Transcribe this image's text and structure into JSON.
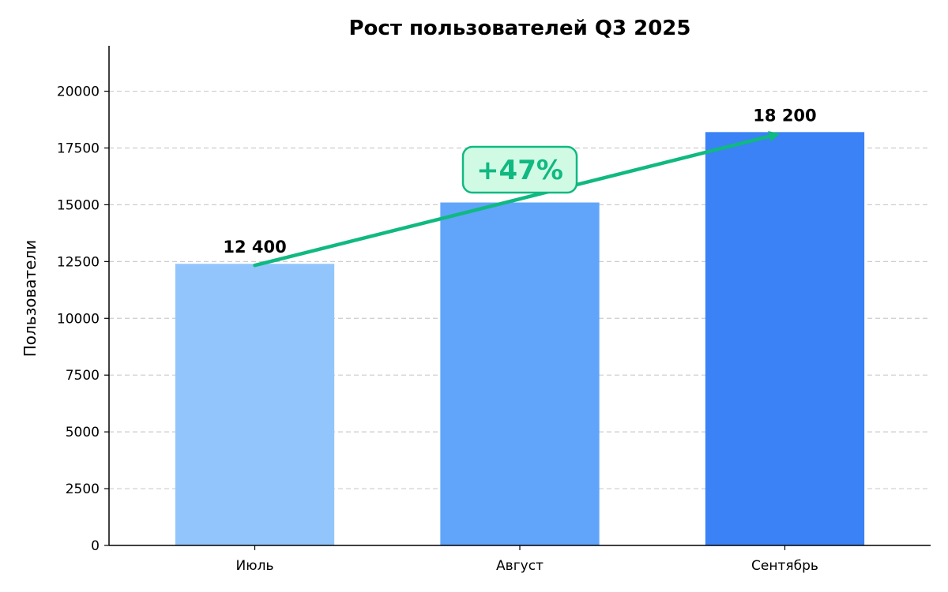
{
  "chart_data": {
    "type": "bar",
    "title": "Рост пользователей Q3 2025",
    "xlabel": "",
    "ylabel": "Пользователи",
    "categories": [
      "Июль",
      "Август",
      "Сентябрь"
    ],
    "values": [
      12400,
      15100,
      18200
    ],
    "data_labels": [
      "12 400",
      "",
      "18 200"
    ],
    "bar_colors": [
      "#93c5fd",
      "#60a5fa",
      "#3b82f6"
    ],
    "ylim": [
      0,
      22000
    ],
    "yticks": [
      0,
      2500,
      5000,
      7500,
      10000,
      12500,
      15000,
      17500,
      20000
    ],
    "grid": "y-dashed",
    "annotation": {
      "text": "+47%",
      "type": "arrow",
      "from_category": "Июль",
      "from_value": 12400,
      "to_category": "Сентябрь",
      "to_value": 18200,
      "color": "#10b981",
      "badge_fill": "#d1fae5"
    }
  }
}
